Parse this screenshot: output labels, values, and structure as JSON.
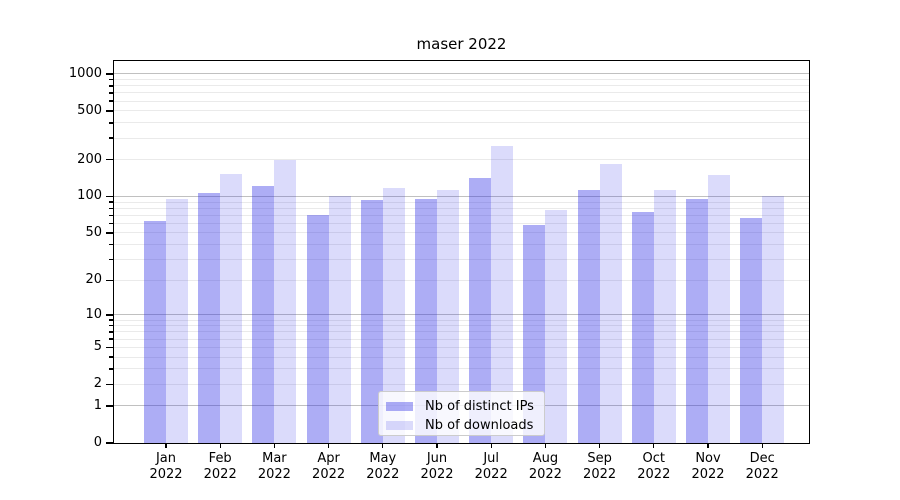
{
  "chart_data": {
    "type": "bar",
    "title": "maser 2022",
    "categories": [
      "Jan",
      "Feb",
      "Mar",
      "Apr",
      "May",
      "Jun",
      "Jul",
      "Aug",
      "Sep",
      "Oct",
      "Nov",
      "Dec"
    ],
    "category_year": "2022",
    "series": [
      {
        "name": "Nb of distinct IPs",
        "values": [
          63,
          107,
          122,
          70,
          94,
          95,
          142,
          58,
          114,
          75,
          95,
          66
        ]
      },
      {
        "name": "Nb of downloads",
        "values": [
          95,
          153,
          198,
          100,
          117,
          114,
          260,
          78,
          183,
          113,
          149,
          100
        ]
      }
    ],
    "yscale": "log1p",
    "ylim": [
      0,
      1310
    ],
    "yticks": [
      1000,
      500,
      200,
      100,
      50,
      20,
      10,
      5,
      2,
      1,
      0
    ],
    "minor_gridlines": [
      2,
      3,
      4,
      5,
      6,
      7,
      8,
      9,
      20,
      30,
      40,
      50,
      60,
      70,
      80,
      90,
      200,
      300,
      400,
      500,
      600,
      700,
      800,
      900
    ],
    "major_gridlines": [
      1,
      10,
      100,
      1000
    ],
    "grid": "both",
    "legend_position": "lower center"
  },
  "colors": {
    "bar_ips": "rgba(40,40,230,0.38)",
    "bar_downloads": "rgba(40,40,230,0.17)",
    "grid_major": "#c0c0c0",
    "grid_minor": "#eaeaea",
    "axis": "#000000",
    "legend_border": "#cccccc",
    "legend_bg": "rgba(255,255,255,0.8)",
    "text": "#000000"
  }
}
